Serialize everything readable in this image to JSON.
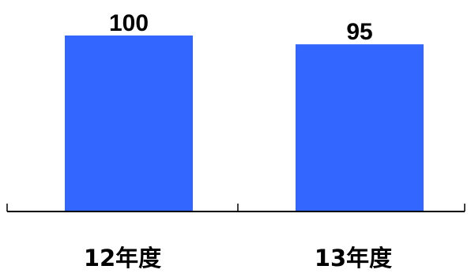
{
  "chart_data": {
    "type": "bar",
    "categories": [
      "12年度",
      "13年度"
    ],
    "values": [
      100,
      95
    ],
    "data_labels": [
      "100",
      "95"
    ],
    "ylim": [
      0,
      100
    ],
    "grid": false,
    "legend": "none",
    "bar_color": "#3366ff"
  }
}
